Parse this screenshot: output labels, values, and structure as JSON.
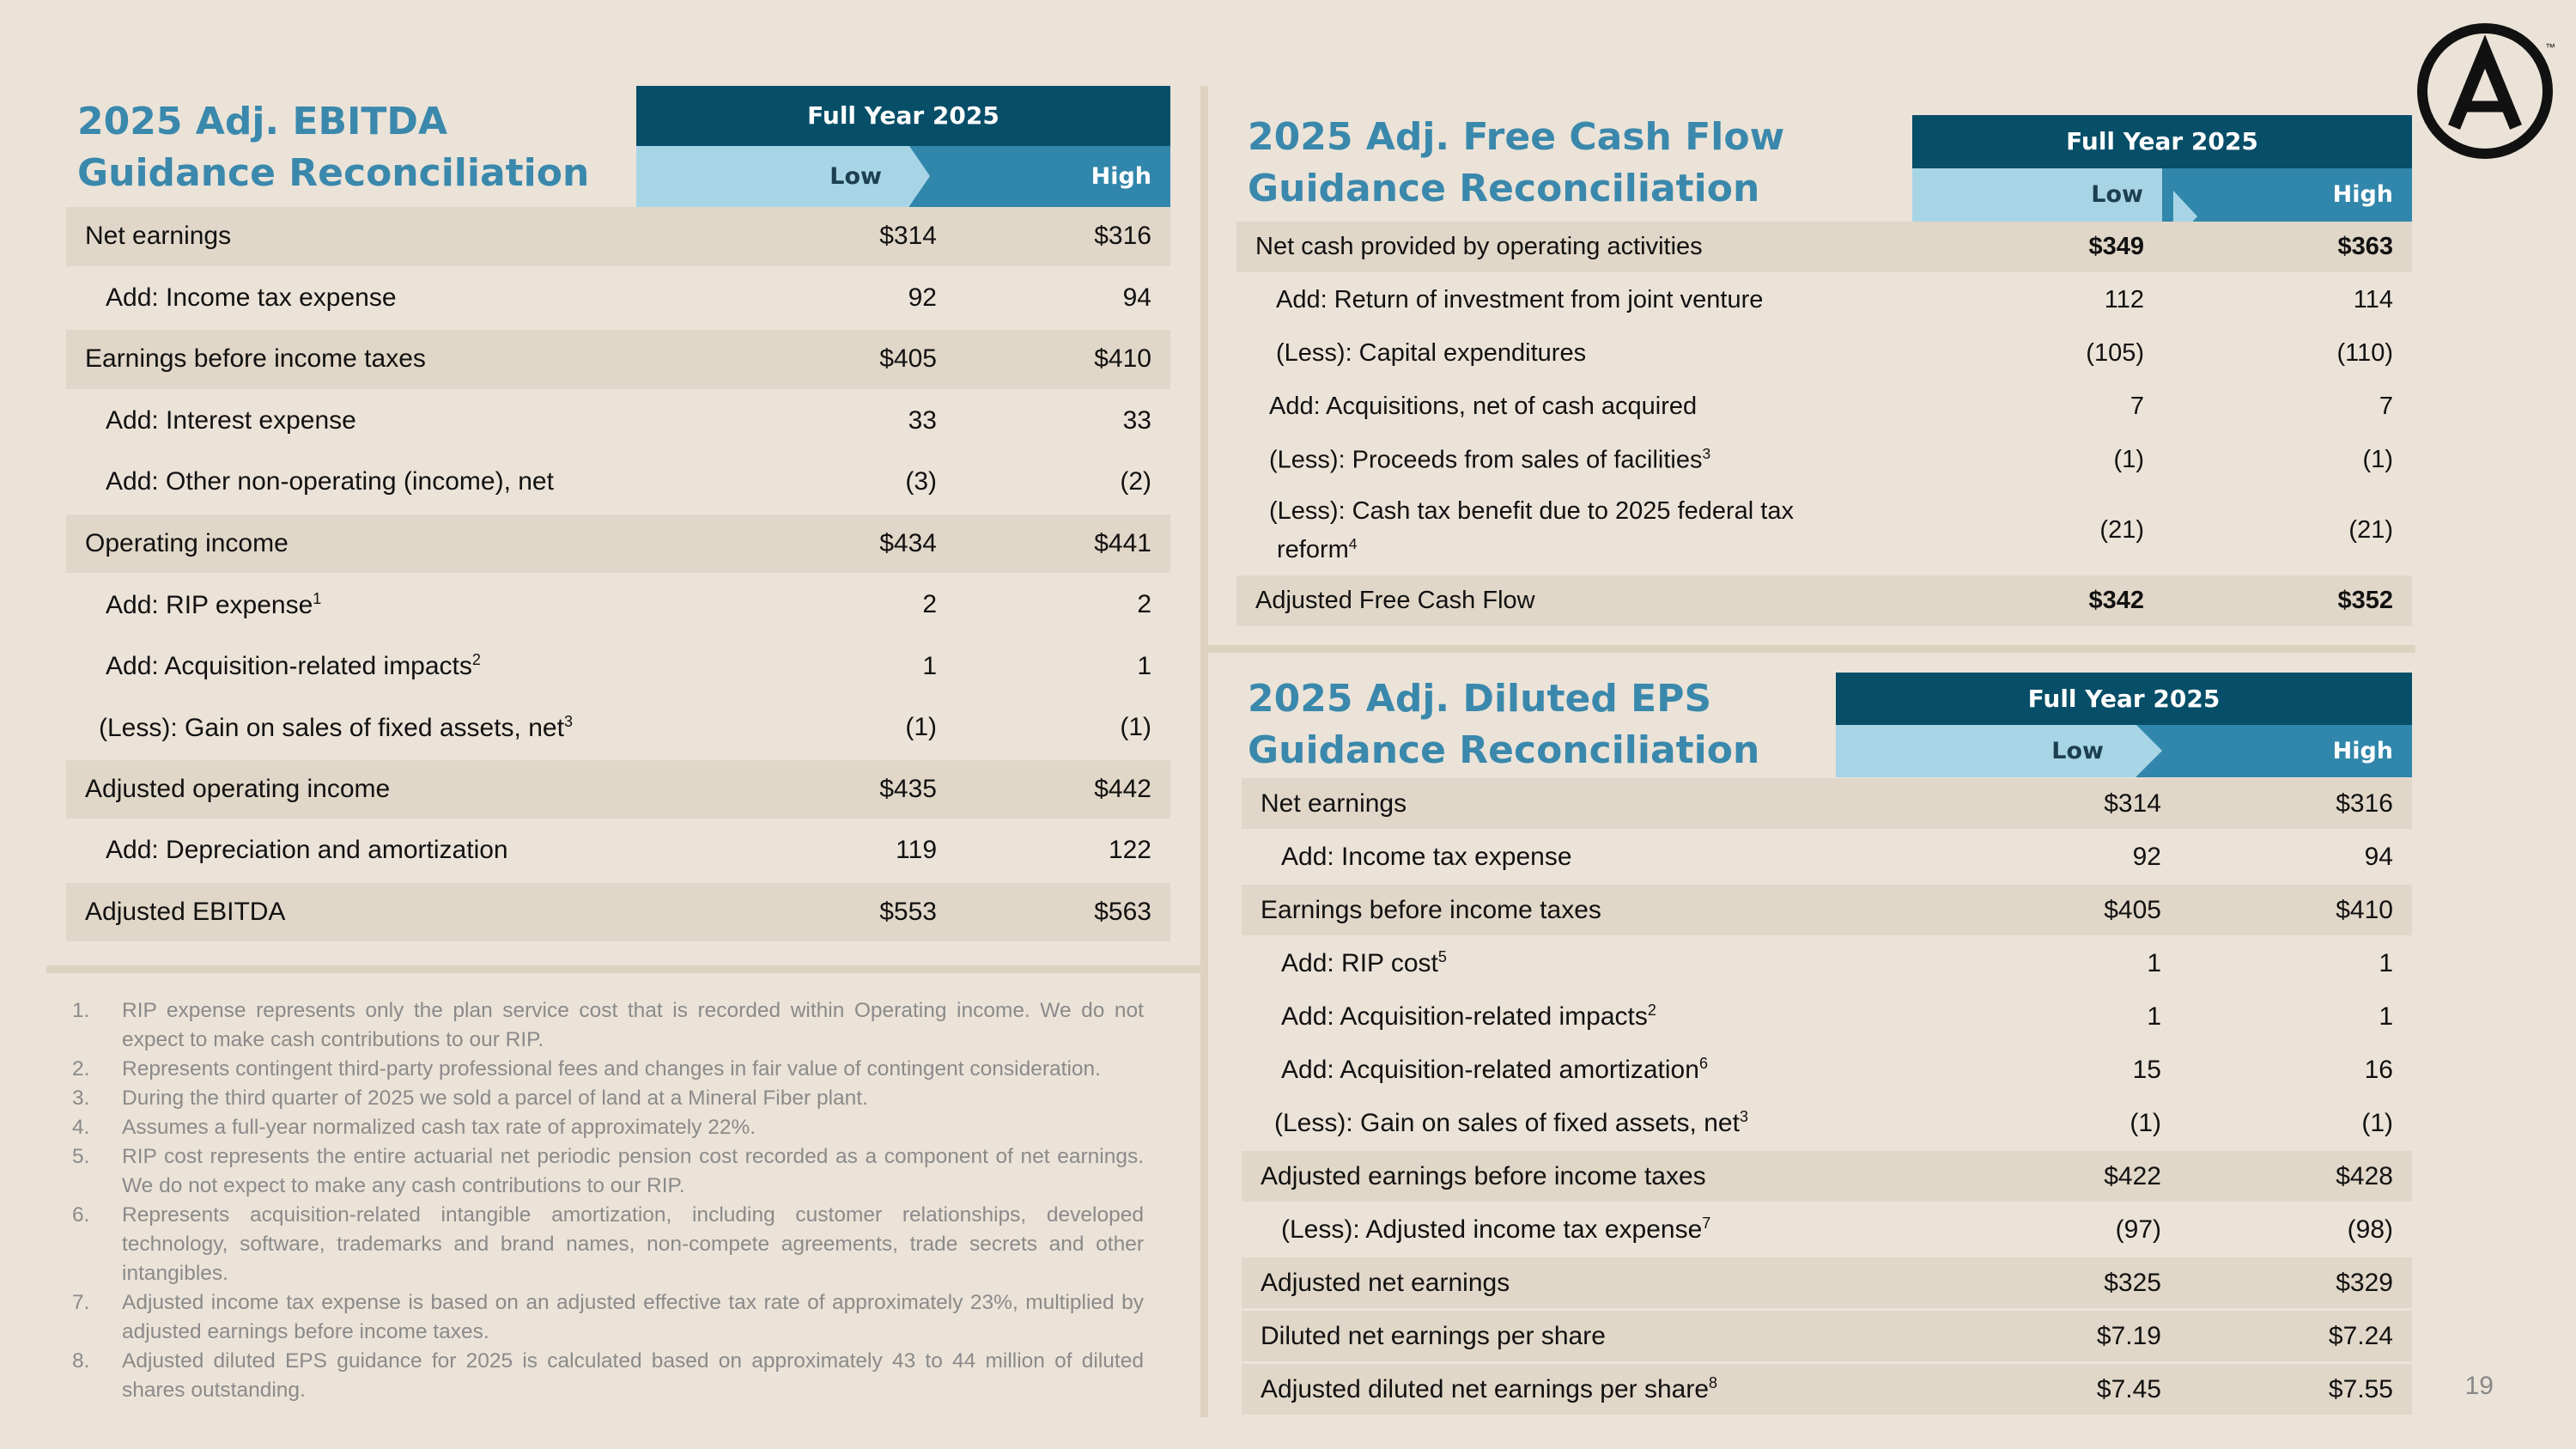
{
  "page_number": "19",
  "colors": {
    "background": "#ebe3d8",
    "title": "#3a88ac",
    "header_dark": "#074e68",
    "header_low": "#a8d5e6",
    "header_high": "#3187ab",
    "row_shade": "#e1d7c8"
  },
  "logo": {
    "icon": "circled-a-logo",
    "tm": "™"
  },
  "ebitda": {
    "title_line1": "2025 Adj. EBITDA",
    "title_line2": "Guidance Reconciliation",
    "header": {
      "period": "Full Year 2025",
      "low": "Low",
      "high": "High"
    },
    "rows": [
      {
        "label": "Net earnings",
        "sup": "",
        "low": "$314",
        "high": "$316"
      },
      {
        "label": "Add: Income tax expense",
        "sup": "",
        "low": "92",
        "high": "94"
      },
      {
        "label": "Earnings before income taxes",
        "sup": "",
        "low": "$405",
        "high": "$410"
      },
      {
        "label": "Add: Interest expense",
        "sup": "",
        "low": "33",
        "high": "33"
      },
      {
        "label": "Add: Other non-operating (income), net",
        "sup": "",
        "low": "(3)",
        "high": "(2)"
      },
      {
        "label": "Operating income",
        "sup": "",
        "low": "$434",
        "high": "$441"
      },
      {
        "label": "Add: RIP expense",
        "sup": "1",
        "low": "2",
        "high": "2"
      },
      {
        "label": "Add: Acquisition-related impacts",
        "sup": "2",
        "low": "1",
        "high": "1"
      },
      {
        "label": "(Less):  Gain on sales of fixed assets, net",
        "sup": "3",
        "low": "(1)",
        "high": "(1)"
      },
      {
        "label": "Adjusted operating income",
        "sup": "",
        "low": "$435",
        "high": "$442"
      },
      {
        "label": "Add: Depreciation and amortization",
        "sup": "",
        "low": "119",
        "high": "122"
      },
      {
        "label": "Adjusted EBITDA",
        "sup": "",
        "low": "$553",
        "high": "$563"
      }
    ]
  },
  "fcf": {
    "title_line1": "2025 Adj. Free Cash Flow",
    "title_line2": "Guidance Reconciliation",
    "header": {
      "period": "Full Year 2025",
      "low": "Low",
      "high": "High"
    },
    "rows": [
      {
        "label": "Net cash provided by operating activities",
        "sup": "",
        "low": "$349",
        "high": "$363"
      },
      {
        "label": "Add: Return of investment from joint venture",
        "sup": "",
        "low": "112",
        "high": "114"
      },
      {
        "label": "(Less): Capital expenditures",
        "sup": "",
        "low": "(105)",
        "high": "(110)"
      },
      {
        "label": "Add: Acquisitions, net of cash acquired",
        "sup": "",
        "low": "7",
        "high": "7"
      },
      {
        "label": "(Less): Proceeds from sales of facilities",
        "sup": "3",
        "low": "(1)",
        "high": "(1)"
      },
      {
        "label": "(Less): Cash tax benefit due to 2025 federal tax",
        "label2": "reform",
        "sup": "4",
        "low": "(21)",
        "high": "(21)"
      },
      {
        "label": "Adjusted Free Cash Flow",
        "sup": "",
        "low": "$342",
        "high": "$352"
      }
    ]
  },
  "eps": {
    "title_line1": "2025 Adj. Diluted EPS",
    "title_line2": "Guidance Reconciliation",
    "header": {
      "period": "Full Year 2025",
      "low": "Low",
      "high": "High"
    },
    "rows": [
      {
        "label": "Net earnings",
        "sup": "",
        "low": "$314",
        "high": "$316"
      },
      {
        "label": "Add: Income tax expense",
        "sup": "",
        "low": "92",
        "high": "94"
      },
      {
        "label": "Earnings before income taxes",
        "sup": "",
        "low": "$405",
        "high": "$410"
      },
      {
        "label": "Add: RIP cost",
        "sup": "5",
        "low": "1",
        "high": "1"
      },
      {
        "label": "Add: Acquisition-related impacts",
        "sup": "2",
        "low": "1",
        "high": "1"
      },
      {
        "label": "Add: Acquisition-related amortization",
        "sup": "6",
        "low": "15",
        "high": "16"
      },
      {
        "label": "(Less): Gain on sales of fixed assets, net",
        "sup": "3",
        "low": "(1)",
        "high": "(1)"
      },
      {
        "label": "Adjusted earnings before income taxes",
        "sup": "",
        "low": "$422",
        "high": "$428"
      },
      {
        "label": "(Less): Adjusted income tax expense",
        "sup": "7",
        "low": "(97)",
        "high": "(98)"
      },
      {
        "label": "Adjusted net earnings",
        "sup": "",
        "low": "$325",
        "high": "$329"
      },
      {
        "label": "Diluted net earnings per share",
        "sup": "",
        "low": "$7.19",
        "high": "$7.24"
      },
      {
        "label": "Adjusted diluted net earnings per share",
        "sup": "8",
        "low": "$7.45",
        "high": "$7.55"
      }
    ]
  },
  "footnotes": [
    {
      "num": "1.",
      "text": "RIP expense represents only the plan service cost that is recorded within Operating income. We do not expect to make cash contributions to our RIP."
    },
    {
      "num": "2.",
      "text": "Represents contingent third-party professional fees and changes in fair value of contingent consideration."
    },
    {
      "num": "3.",
      "text": "During the third quarter of 2025 we sold a parcel of land at a Mineral Fiber plant."
    },
    {
      "num": "4.",
      "text": "Assumes a full-year normalized cash tax rate of approximately 22%."
    },
    {
      "num": "5.",
      "text": "RIP cost represents the entire actuarial net periodic pension cost recorded as a component of net earnings. We do not expect to make any cash contributions to our RIP."
    },
    {
      "num": "6.",
      "text": "Represents acquisition-related intangible amortization, including customer relationships, developed technology, software, trademarks and brand names, non-compete agreements, trade secrets and other intangibles."
    },
    {
      "num": "7.",
      "text": "Adjusted income tax expense is based on an adjusted effective tax rate of approximately 23%, multiplied by adjusted earnings before income taxes."
    },
    {
      "num": "8.",
      "text": "Adjusted diluted EPS guidance for 2025 is calculated based on approximately 43 to 44 million of diluted shares outstanding."
    }
  ]
}
